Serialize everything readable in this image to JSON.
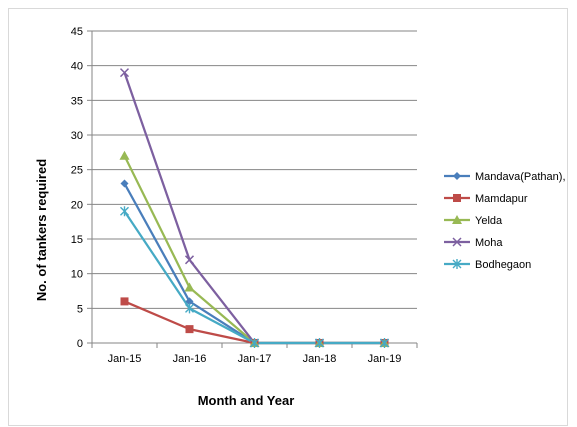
{
  "chart_data": {
    "type": "line",
    "title": "",
    "xlabel": "Month and Year",
    "ylabel": "No. of tankers required",
    "categories": [
      "Jan-15",
      "Jan-16",
      "Jan-17",
      "Jan-18",
      "Jan-19"
    ],
    "ylim": [
      0,
      45
    ],
    "yticks": [
      0,
      5,
      10,
      15,
      20,
      25,
      30,
      35,
      40,
      45
    ],
    "grid": "horizontal",
    "legend_position": "right",
    "series": [
      {
        "name": "Mandava(Pathan),",
        "values": [
          23,
          6,
          0,
          0,
          0
        ],
        "color": "#4a7ebb",
        "marker": "diamond"
      },
      {
        "name": "Mamdapur",
        "values": [
          6,
          2,
          0,
          0,
          0
        ],
        "color": "#be4b48",
        "marker": "square"
      },
      {
        "name": "Yelda",
        "values": [
          27,
          8,
          0,
          0,
          0
        ],
        "color": "#98b954",
        "marker": "triangle"
      },
      {
        "name": "Moha",
        "values": [
          39,
          12,
          0,
          0,
          0
        ],
        "color": "#7d60a0",
        "marker": "x"
      },
      {
        "name": "Bodhegaon",
        "values": [
          19,
          5,
          0,
          0,
          0
        ],
        "color": "#46aac5",
        "marker": "star"
      }
    ]
  }
}
